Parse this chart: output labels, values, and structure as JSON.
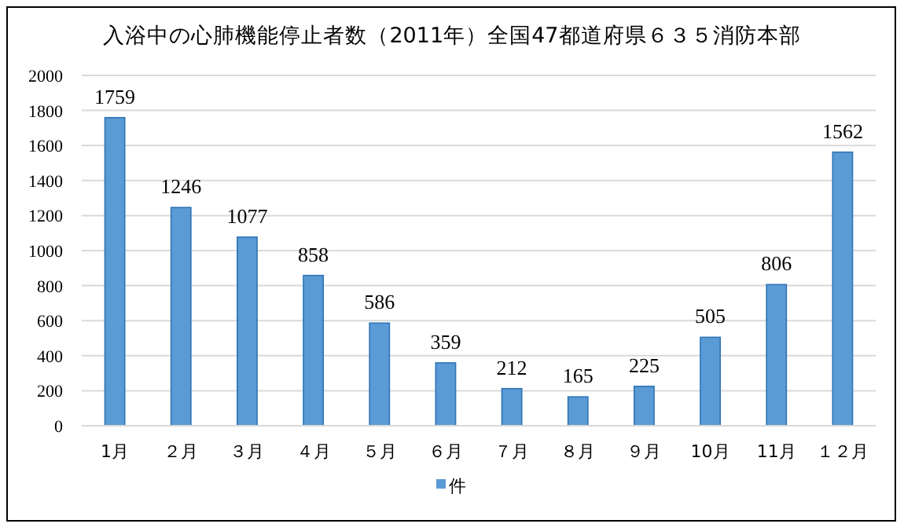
{
  "chart_data": {
    "type": "bar",
    "title": "入浴中の心肺機能停止者数（2011年）全国47都道府県６３５消防本部",
    "categories": [
      "1月",
      "２月",
      "３月",
      "４月",
      "５月",
      "６月",
      "７月",
      "８月",
      "９月",
      "10月",
      "11月",
      "１２月"
    ],
    "series": [
      {
        "name": "件",
        "color": "#5b9bd5",
        "values": [
          1759,
          1246,
          1077,
          858,
          586,
          359,
          212,
          165,
          225,
          505,
          806,
          1562
        ]
      }
    ],
    "ylim": [
      0,
      2000
    ],
    "yticks": [
      0,
      200,
      400,
      600,
      800,
      1000,
      1200,
      1400,
      1600,
      1800,
      2000
    ],
    "grid": "y",
    "legend": "bottom",
    "data_labels": true
  }
}
